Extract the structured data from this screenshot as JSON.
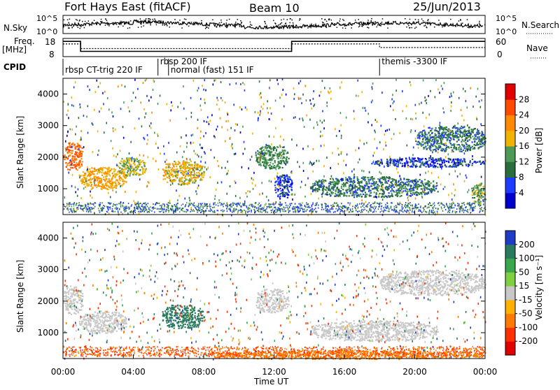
{
  "header": {
    "station": "Fort Hays East (fitACF)",
    "beam": "Beam 10",
    "date": "25/Jun/2013"
  },
  "left_labels": {
    "nsky": "N.Sky",
    "freq": "Freq.",
    "freq_unit": "[MHz]",
    "cpid": "CPID"
  },
  "right_labels": {
    "nsearch": "N.Search",
    "nave": "Nave"
  },
  "noise_axis": {
    "top": "10^5",
    "bottom": "10^0"
  },
  "freq_axis": {
    "top": "18",
    "bottom": "8"
  },
  "nave_axis": {
    "top": "60",
    "bottom": "0"
  },
  "cpid_segments": [
    {
      "label": "rbsp CT-trig 220 IF",
      "start_h": 0.0
    },
    {
      "label": "rbsp 200 IF",
      "start_h": 5.4
    },
    {
      "label": "normal (fast) 151 IF",
      "start_h": 6.0
    },
    {
      "label": "themis -3300 IF",
      "start_h": 18.0
    }
  ],
  "x_axis": {
    "label": "Time UT",
    "ticks": [
      "00:00",
      "04:00",
      "08:00",
      "12:00",
      "16:00",
      "20:00",
      "00:00"
    ]
  },
  "power_panel": {
    "ylabel": "Slant Range [km]",
    "yticks": [
      "1000",
      "2000",
      "3000",
      "4000"
    ]
  },
  "velocity_panel": {
    "ylabel": "Slant Range [km]",
    "yticks": [
      "1000",
      "2000",
      "3000",
      "4000"
    ]
  },
  "power_colorbar": {
    "label": "Power [dB]",
    "ticks": [
      "28",
      "24",
      "20",
      "16",
      "12",
      "8",
      "4"
    ],
    "colors": [
      "#0000cc",
      "#1e3cff",
      "#2a6e3c",
      "#4d9a58",
      "#f0b400",
      "#ff8a00",
      "#ff4a00",
      "#e00000"
    ]
  },
  "velocity_colorbar": {
    "label": "Velocity [m s⁻¹]",
    "ticks": [
      "200",
      "100",
      "50",
      "15",
      "-15",
      "-50",
      "-100",
      "-200"
    ],
    "colors": [
      "#1e3cc8",
      "#2a7a60",
      "#3aa84a",
      "#7fd040",
      "#c8c8c8",
      "#ffb000",
      "#ff7a00",
      "#ff3000",
      "#e00000"
    ]
  },
  "chart_data": {
    "type": "heatmap",
    "title": "Fort Hays East (fitACF)",
    "x_range_hours": [
      0,
      24
    ],
    "y_range_km": [
      180,
      4500
    ],
    "xlabel": "Time UT",
    "ylabel": "Slant Range [km]",
    "frequency_mhz": [
      {
        "t0": 0.0,
        "t1": 1.0,
        "value": 17.0
      },
      {
        "t0": 1.0,
        "t1": 13.0,
        "value": 10.5
      },
      {
        "t0": 13.0,
        "t1": 24.0,
        "value": 17.0
      }
    ],
    "nave": [
      {
        "t0": 0.0,
        "t1": 1.0,
        "value": 44
      },
      {
        "t0": 1.0,
        "t1": 13.0,
        "value": 26
      },
      {
        "t0": 13.0,
        "t1": 18.0,
        "value": 44
      },
      {
        "t0": 18.0,
        "t1": 24.0,
        "value": 30
      }
    ],
    "power_regions": [
      {
        "t0": 0.0,
        "t1": 1.1,
        "r0": 1600,
        "r1": 2500,
        "level": 24
      },
      {
        "t0": 0.9,
        "t1": 3.6,
        "r0": 1000,
        "r1": 1700,
        "level": 20
      },
      {
        "t0": 3.0,
        "t1": 4.7,
        "r0": 1400,
        "r1": 2000,
        "level": 16
      },
      {
        "t0": 5.6,
        "t1": 8.0,
        "r0": 1150,
        "r1": 1900,
        "level": 18
      },
      {
        "t0": 10.9,
        "t1": 12.8,
        "r0": 1650,
        "r1": 2400,
        "level": 12
      },
      {
        "t0": 12.0,
        "t1": 13.0,
        "r0": 700,
        "r1": 1500,
        "level": 6
      },
      {
        "t0": 14.0,
        "t1": 21.3,
        "r0": 750,
        "r1": 1400,
        "level": 10
      },
      {
        "t0": 17.5,
        "t1": 23.9,
        "r0": 1700,
        "r1": 2000,
        "level": 6
      },
      {
        "t0": 20.0,
        "t1": 24.0,
        "r0": 2200,
        "r1": 3000,
        "level": 10
      },
      {
        "t0": 23.2,
        "t1": 24.0,
        "r0": 500,
        "r1": 1200,
        "level": 14
      }
    ],
    "velocity_regions": [
      {
        "t0": 0.0,
        "t1": 1.1,
        "r0": 1600,
        "r1": 2500,
        "v": -5
      },
      {
        "t0": 0.9,
        "t1": 3.6,
        "r0": 1000,
        "r1": 1700,
        "v": 0
      },
      {
        "t0": 5.6,
        "t1": 8.0,
        "r0": 1150,
        "r1": 1900,
        "v": 120
      },
      {
        "t0": 10.9,
        "t1": 12.8,
        "r0": 1650,
        "r1": 2400,
        "v": 5
      },
      {
        "t0": 14.0,
        "t1": 21.3,
        "r0": 750,
        "r1": 1400,
        "v": -5
      },
      {
        "t0": 18.0,
        "t1": 24.0,
        "r0": 2200,
        "r1": 3000,
        "v": 0
      },
      {
        "t0": 8.0,
        "t1": 24.0,
        "r0": 180,
        "r1": 450,
        "v": -80
      }
    ]
  }
}
